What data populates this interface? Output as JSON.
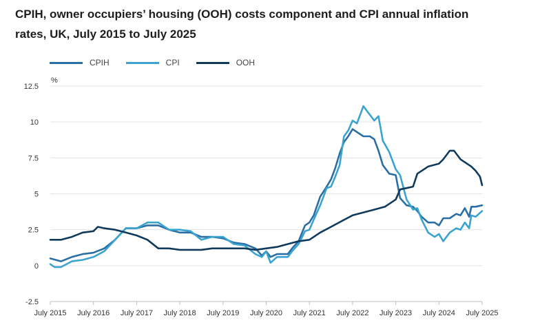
{
  "chart_data": {
    "type": "line",
    "title": "CPIH, owner occupiers’ housing (OOH) costs component and CPI annual inflation rates, UK, July 2015 to July 2025",
    "ylabel": "%",
    "xlabel": "",
    "ylim": [
      -2.5,
      12.5
    ],
    "yticks": [
      "12.5",
      "10",
      "7.5",
      "5",
      "2.5",
      "0",
      "-2.5"
    ],
    "yticks_values": [
      12.5,
      10,
      7.5,
      5,
      2.5,
      0,
      -2.5
    ],
    "xlim": [
      2015.5,
      2025.5
    ],
    "xticks": [
      "July 2015",
      "July 2016",
      "July 2017",
      "July 2018",
      "July 2019",
      "July 2020",
      "July 2021",
      "July 2022",
      "July 2023",
      "July 2024",
      "July 2025"
    ],
    "xticks_values": [
      2015.5,
      2016.5,
      2017.5,
      2018.5,
      2019.5,
      2020.5,
      2021.5,
      2022.5,
      2023.5,
      2024.5,
      2025.5
    ],
    "grid": true,
    "legend_position": "top-left",
    "series": [
      {
        "name": "CPIH",
        "color": "#2a6ea6",
        "points": [
          [
            2015.5,
            0.5
          ],
          [
            2015.75,
            0.3
          ],
          [
            2016.0,
            0.6
          ],
          [
            2016.25,
            0.8
          ],
          [
            2016.5,
            0.9
          ],
          [
            2016.75,
            1.2
          ],
          [
            2017.0,
            1.8
          ],
          [
            2017.25,
            2.6
          ],
          [
            2017.5,
            2.6
          ],
          [
            2017.75,
            2.8
          ],
          [
            2018.0,
            2.8
          ],
          [
            2018.25,
            2.5
          ],
          [
            2018.5,
            2.3
          ],
          [
            2018.75,
            2.3
          ],
          [
            2019.0,
            2.0
          ],
          [
            2019.25,
            2.0
          ],
          [
            2019.5,
            1.9
          ],
          [
            2019.75,
            1.6
          ],
          [
            2020.0,
            1.5
          ],
          [
            2020.25,
            1.2
          ],
          [
            2020.4,
            0.7
          ],
          [
            2020.5,
            1.0
          ],
          [
            2020.6,
            0.6
          ],
          [
            2020.75,
            0.8
          ],
          [
            2021.0,
            0.8
          ],
          [
            2021.1,
            1.2
          ],
          [
            2021.25,
            1.7
          ],
          [
            2021.4,
            2.8
          ],
          [
            2021.5,
            3.0
          ],
          [
            2021.6,
            3.5
          ],
          [
            2021.75,
            4.8
          ],
          [
            2021.9,
            5.5
          ],
          [
            2022.0,
            6.0
          ],
          [
            2022.1,
            6.8
          ],
          [
            2022.2,
            7.8
          ],
          [
            2022.3,
            8.6
          ],
          [
            2022.4,
            9.0
          ],
          [
            2022.5,
            9.5
          ],
          [
            2022.6,
            9.3
          ],
          [
            2022.75,
            9.0
          ],
          [
            2022.9,
            9.0
          ],
          [
            2023.0,
            8.8
          ],
          [
            2023.1,
            8.0
          ],
          [
            2023.2,
            7.0
          ],
          [
            2023.35,
            6.4
          ],
          [
            2023.5,
            6.3
          ],
          [
            2023.6,
            4.7
          ],
          [
            2023.75,
            4.2
          ],
          [
            2023.9,
            4.1
          ],
          [
            2024.0,
            3.8
          ],
          [
            2024.1,
            3.4
          ],
          [
            2024.25,
            3.0
          ],
          [
            2024.4,
            3.0
          ],
          [
            2024.5,
            2.8
          ],
          [
            2024.6,
            3.3
          ],
          [
            2024.75,
            3.3
          ],
          [
            2024.9,
            3.6
          ],
          [
            2025.0,
            3.5
          ],
          [
            2025.1,
            4.0
          ],
          [
            2025.2,
            3.4
          ],
          [
            2025.25,
            4.1
          ],
          [
            2025.35,
            4.1
          ],
          [
            2025.5,
            4.2
          ]
        ]
      },
      {
        "name": "CPI",
        "color": "#3aa3cf",
        "points": [
          [
            2015.5,
            0.1
          ],
          [
            2015.6,
            -0.1
          ],
          [
            2015.75,
            -0.1
          ],
          [
            2016.0,
            0.3
          ],
          [
            2016.25,
            0.4
          ],
          [
            2016.5,
            0.6
          ],
          [
            2016.75,
            1.0
          ],
          [
            2017.0,
            1.8
          ],
          [
            2017.25,
            2.6
          ],
          [
            2017.5,
            2.6
          ],
          [
            2017.75,
            3.0
          ],
          [
            2018.0,
            3.0
          ],
          [
            2018.25,
            2.5
          ],
          [
            2018.5,
            2.5
          ],
          [
            2018.75,
            2.4
          ],
          [
            2019.0,
            1.8
          ],
          [
            2019.25,
            2.0
          ],
          [
            2019.5,
            2.0
          ],
          [
            2019.75,
            1.5
          ],
          [
            2020.0,
            1.4
          ],
          [
            2020.25,
            0.8
          ],
          [
            2020.4,
            0.6
          ],
          [
            2020.5,
            1.0
          ],
          [
            2020.6,
            0.2
          ],
          [
            2020.75,
            0.6
          ],
          [
            2021.0,
            0.6
          ],
          [
            2021.1,
            1.0
          ],
          [
            2021.25,
            1.5
          ],
          [
            2021.4,
            2.4
          ],
          [
            2021.5,
            2.5
          ],
          [
            2021.6,
            3.2
          ],
          [
            2021.75,
            4.2
          ],
          [
            2021.9,
            5.4
          ],
          [
            2022.0,
            5.5
          ],
          [
            2022.1,
            6.2
          ],
          [
            2022.2,
            7.0
          ],
          [
            2022.3,
            9.0
          ],
          [
            2022.4,
            9.4
          ],
          [
            2022.5,
            10.1
          ],
          [
            2022.6,
            9.9
          ],
          [
            2022.75,
            11.1
          ],
          [
            2022.85,
            10.7
          ],
          [
            2022.9,
            10.5
          ],
          [
            2023.0,
            10.1
          ],
          [
            2023.1,
            10.4
          ],
          [
            2023.2,
            8.7
          ],
          [
            2023.35,
            7.9
          ],
          [
            2023.5,
            6.7
          ],
          [
            2023.6,
            6.3
          ],
          [
            2023.75,
            4.6
          ],
          [
            2023.9,
            3.9
          ],
          [
            2024.0,
            4.0
          ],
          [
            2024.1,
            3.2
          ],
          [
            2024.25,
            2.3
          ],
          [
            2024.4,
            2.0
          ],
          [
            2024.5,
            2.2
          ],
          [
            2024.6,
            1.7
          ],
          [
            2024.75,
            2.3
          ],
          [
            2024.9,
            2.6
          ],
          [
            2025.0,
            2.5
          ],
          [
            2025.1,
            3.0
          ],
          [
            2025.2,
            2.6
          ],
          [
            2025.25,
            3.5
          ],
          [
            2025.35,
            3.4
          ],
          [
            2025.5,
            3.8
          ]
        ]
      },
      {
        "name": "OOH",
        "color": "#0f3a5c",
        "points": [
          [
            2015.5,
            1.8
          ],
          [
            2015.75,
            1.8
          ],
          [
            2016.0,
            2.0
          ],
          [
            2016.25,
            2.3
          ],
          [
            2016.5,
            2.4
          ],
          [
            2016.6,
            2.7
          ],
          [
            2016.75,
            2.6
          ],
          [
            2017.0,
            2.5
          ],
          [
            2017.25,
            2.3
          ],
          [
            2017.5,
            2.1
          ],
          [
            2017.75,
            1.8
          ],
          [
            2018.0,
            1.2
          ],
          [
            2018.25,
            1.2
          ],
          [
            2018.5,
            1.1
          ],
          [
            2018.75,
            1.1
          ],
          [
            2019.0,
            1.1
          ],
          [
            2019.25,
            1.2
          ],
          [
            2019.5,
            1.2
          ],
          [
            2019.75,
            1.2
          ],
          [
            2020.0,
            1.2
          ],
          [
            2020.25,
            1.1
          ],
          [
            2020.5,
            1.2
          ],
          [
            2020.75,
            1.3
          ],
          [
            2021.0,
            1.5
          ],
          [
            2021.25,
            1.7
          ],
          [
            2021.5,
            1.8
          ],
          [
            2021.75,
            2.3
          ],
          [
            2022.0,
            2.7
          ],
          [
            2022.25,
            3.1
          ],
          [
            2022.5,
            3.5
          ],
          [
            2022.75,
            3.7
          ],
          [
            2023.0,
            3.9
          ],
          [
            2023.25,
            4.1
          ],
          [
            2023.5,
            4.6
          ],
          [
            2023.6,
            5.3
          ],
          [
            2023.75,
            5.4
          ],
          [
            2023.9,
            5.5
          ],
          [
            2024.0,
            6.4
          ],
          [
            2024.25,
            6.9
          ],
          [
            2024.5,
            7.1
          ],
          [
            2024.6,
            7.4
          ],
          [
            2024.75,
            8.0
          ],
          [
            2024.85,
            8.0
          ],
          [
            2025.0,
            7.4
          ],
          [
            2025.25,
            6.9
          ],
          [
            2025.35,
            6.6
          ],
          [
            2025.45,
            6.2
          ],
          [
            2025.5,
            5.6
          ]
        ]
      }
    ]
  }
}
